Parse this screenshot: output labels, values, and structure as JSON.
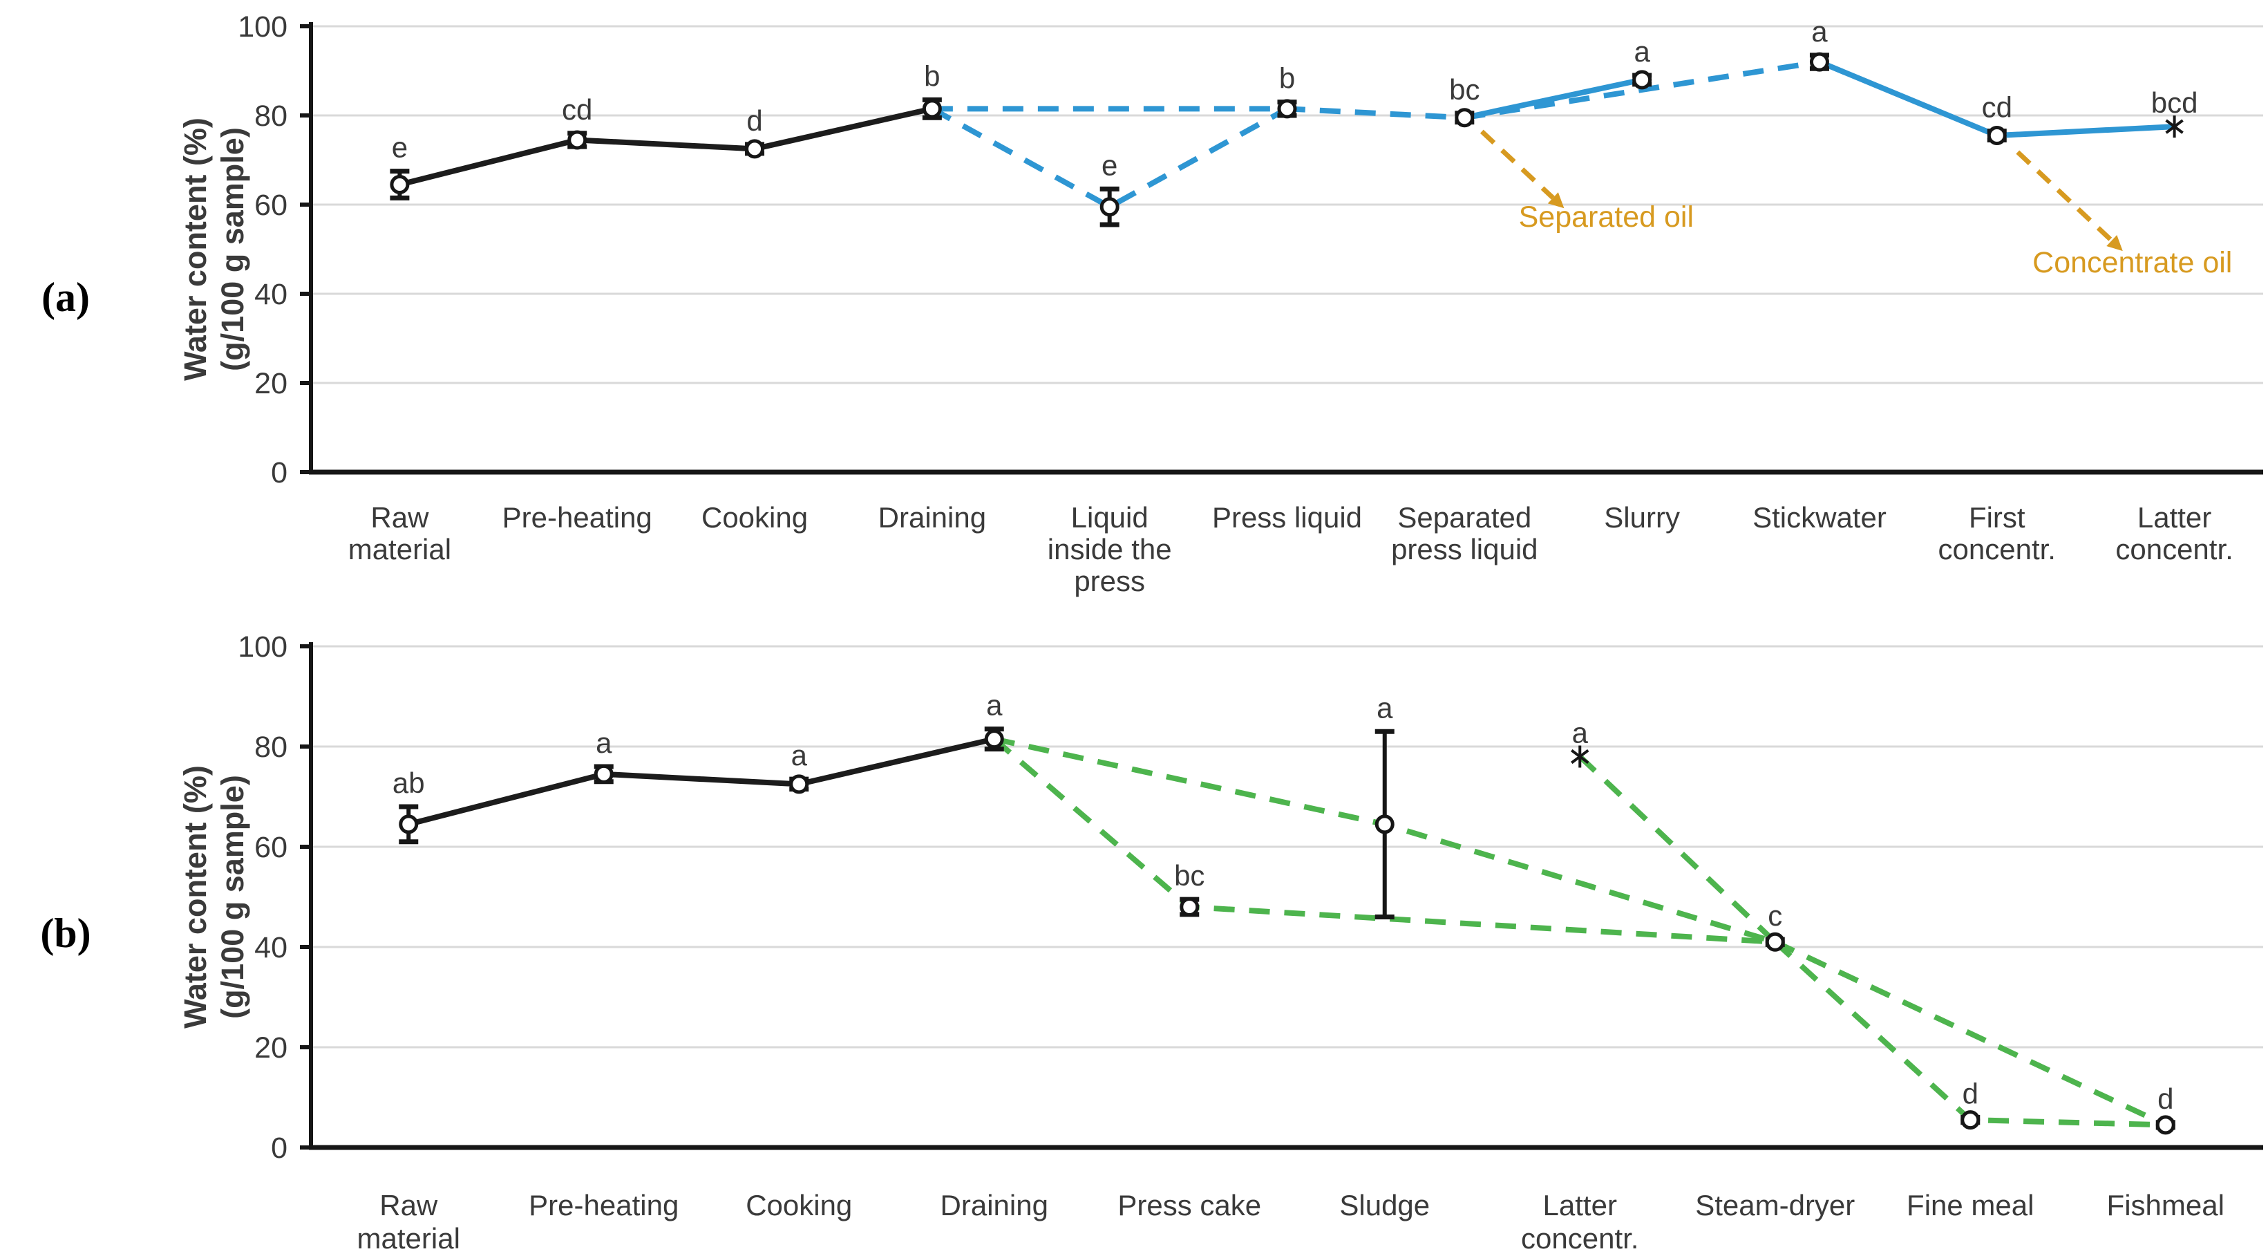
{
  "figure": {
    "description": "Two-panel line chart of water content across fish processing steps",
    "colors": {
      "black_series": "#1c1c1c",
      "blue_series": "#2e96d3",
      "green_series": "#4db44d",
      "orange_annotation": "#d79a20",
      "gridline": "#d9d9d9",
      "axis": "#161616",
      "text": "#3a3a3a",
      "marker_fill": "#ffffff"
    }
  },
  "chart_data": [
    {
      "id": "a",
      "type": "line",
      "panel_label": "(a)",
      "ylabel_lines": [
        "Water content (%)",
        "(g/100 g sample)"
      ],
      "ylim": [
        0,
        100
      ],
      "yticks": [
        0,
        20,
        40,
        60,
        80,
        100
      ],
      "grid": true,
      "categories": [
        [
          "Raw",
          "material"
        ],
        [
          "Pre-heating"
        ],
        [
          "Cooking"
        ],
        [
          "Draining"
        ],
        [
          "Liquid",
          "inside the",
          "press"
        ],
        [
          "Press liquid"
        ],
        [
          "Separated",
          "press liquid"
        ],
        [
          "Slurry"
        ],
        [
          "Stickwater"
        ],
        [
          "First",
          "concentr."
        ],
        [
          "Latter",
          "concentr."
        ]
      ],
      "points": [
        {
          "value": 64.5,
          "err": 3,
          "letter": "e",
          "marker": "circle"
        },
        {
          "value": 74.5,
          "err": 1.5,
          "letter": "cd",
          "marker": "circle"
        },
        {
          "value": 72.5,
          "err": 1,
          "letter": "d",
          "marker": "circle"
        },
        {
          "value": 81.5,
          "err": 2,
          "letter": "b",
          "marker": "circle"
        },
        {
          "value": 59.5,
          "err": 4,
          "letter": "e",
          "marker": "circle"
        },
        {
          "value": 81.5,
          "err": 1.5,
          "letter": "b",
          "marker": "circle"
        },
        {
          "value": 79.5,
          "err": 1,
          "letter": "bc",
          "marker": "circle"
        },
        {
          "value": 88,
          "err": 1,
          "letter": "a",
          "marker": "circle"
        },
        {
          "value": 92,
          "err": 1.5,
          "letter": "a",
          "marker": "circle"
        },
        {
          "value": 75.5,
          "err": 1,
          "letter": "cd",
          "marker": "circle"
        },
        {
          "value": 77.5,
          "err": 0,
          "letter": "bcd",
          "marker": "asterisk"
        }
      ],
      "segments": [
        {
          "points": [
            0,
            1,
            2,
            3
          ],
          "color": "black_series",
          "style": "solid"
        },
        {
          "points": [
            3,
            4,
            5
          ],
          "color": "blue_series",
          "style": "dashed"
        },
        {
          "points": [
            3,
            5,
            6
          ],
          "color": "blue_series",
          "style": "dashed"
        },
        {
          "points": [
            6,
            8
          ],
          "color": "blue_series",
          "style": "dashed"
        },
        {
          "points": [
            6,
            7
          ],
          "color": "blue_series",
          "style": "solid"
        },
        {
          "points": [
            8,
            9,
            10
          ],
          "color": "blue_series",
          "style": "solid"
        }
      ],
      "annotations": [
        {
          "label": "Separated oil",
          "point": 6,
          "from_dx": 25,
          "from_dy": 20,
          "to_dx": 128,
          "to_dy": 116,
          "text_dx": 205,
          "text_dy": 158
        },
        {
          "label": "Concentrate oil",
          "point": 9,
          "from_dx": 30,
          "from_dy": 24,
          "to_dx": 166,
          "to_dy": 152,
          "text_dx": 196,
          "text_dy": 198
        }
      ]
    },
    {
      "id": "b",
      "type": "line",
      "panel_label": "(b)",
      "ylabel_lines": [
        "Water content (%)",
        "(g/100 g sample)"
      ],
      "ylim": [
        0,
        100
      ],
      "yticks": [
        0,
        20,
        40,
        60,
        80,
        100
      ],
      "grid": true,
      "categories": [
        [
          "Raw",
          "material"
        ],
        [
          "Pre-heating"
        ],
        [
          "Cooking"
        ],
        [
          "Draining"
        ],
        [
          "Press cake"
        ],
        [
          "Sludge"
        ],
        [
          "Latter",
          "concentr."
        ],
        [
          "Steam-dryer"
        ],
        [
          "Fine meal"
        ],
        [
          "Fishmeal"
        ]
      ],
      "points": [
        {
          "value": 64.5,
          "err": 3.5,
          "letter": "ab",
          "marker": "circle"
        },
        {
          "value": 74.5,
          "err": 1.5,
          "letter": "a",
          "marker": "circle"
        },
        {
          "value": 72.5,
          "err": 1,
          "letter": "a",
          "marker": "circle"
        },
        {
          "value": 81.5,
          "err": 2,
          "letter": "a",
          "marker": "circle"
        },
        {
          "value": 48,
          "err": 1.5,
          "letter": "bc",
          "marker": "circle"
        },
        {
          "value": 64.5,
          "err": 18.5,
          "letter": "a",
          "marker": "circle"
        },
        {
          "value": 78,
          "err": 0,
          "letter": "a",
          "marker": "asterisk"
        },
        {
          "value": 41,
          "err": 0.5,
          "letter": "c",
          "marker": "circle"
        },
        {
          "value": 5.5,
          "err": 0.5,
          "letter": "d",
          "marker": "circle"
        },
        {
          "value": 4.5,
          "err": 0.5,
          "letter": "d",
          "marker": "circle"
        }
      ],
      "segments": [
        {
          "points": [
            0,
            1,
            2,
            3
          ],
          "color": "black_series",
          "style": "solid"
        },
        {
          "points": [
            3,
            4,
            7
          ],
          "color": "green_series",
          "style": "dashed"
        },
        {
          "points": [
            3,
            5,
            7
          ],
          "color": "green_series",
          "style": "dashed"
        },
        {
          "points": [
            6,
            7
          ],
          "color": "green_series",
          "style": "dashed"
        },
        {
          "points": [
            7,
            8,
            9
          ],
          "color": "green_series",
          "style": "dashed"
        },
        {
          "points": [
            7,
            9
          ],
          "color": "green_series",
          "style": "dashed"
        }
      ],
      "annotations": []
    }
  ]
}
